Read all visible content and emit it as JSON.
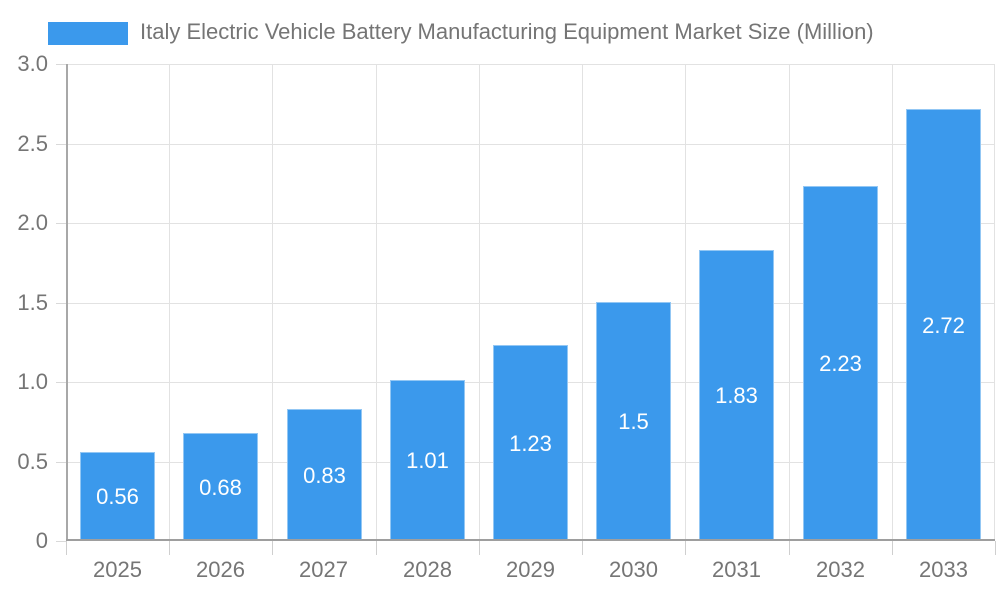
{
  "legend": {
    "series_label": "Italy Electric Vehicle Battery Manufacturing Equipment Market Size (Million)"
  },
  "chart_data": {
    "type": "bar",
    "title": "Italy Electric Vehicle Battery Manufacturing Equipment Market Size (Million)",
    "categories": [
      "2025",
      "2026",
      "2027",
      "2028",
      "2029",
      "2030",
      "2031",
      "2032",
      "2033"
    ],
    "values": [
      0.56,
      0.68,
      0.83,
      1.01,
      1.23,
      1.5,
      1.83,
      2.23,
      2.72
    ],
    "value_labels": [
      "0.56",
      "0.68",
      "0.83",
      "1.01",
      "1.23",
      "1.5",
      "1.83",
      "2.23",
      "2.72"
    ],
    "xlabel": "",
    "ylabel": "",
    "ylim": [
      0,
      3
    ],
    "yticks": [
      {
        "value": 0,
        "label": "0"
      },
      {
        "value": 0.5,
        "label": "0.5"
      },
      {
        "value": 1,
        "label": "1.0"
      },
      {
        "value": 1.5,
        "label": "1.5"
      },
      {
        "value": 2,
        "label": "2.0"
      },
      {
        "value": 2.5,
        "label": "2.5"
      },
      {
        "value": 3,
        "label": "3.0"
      }
    ],
    "grid": true,
    "legend_position": "top"
  },
  "colors": {
    "bar": "#3b99ec",
    "bar_value_label": "#ffffff",
    "axis_text": "#757575",
    "gridline": "#e2e2e2",
    "axis_line": "#9e9e9e",
    "background": "#ffffff"
  }
}
